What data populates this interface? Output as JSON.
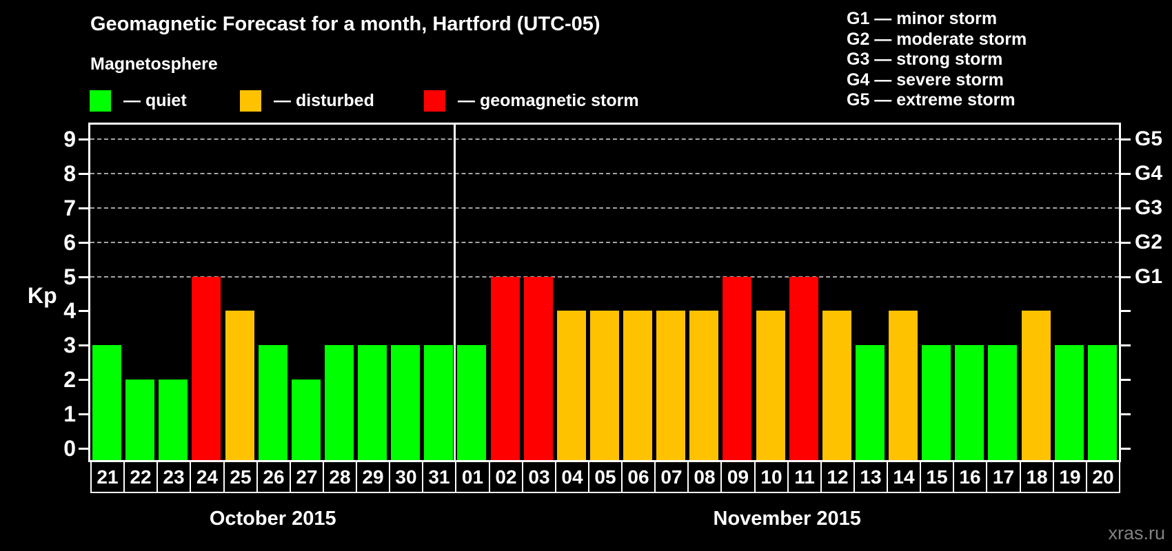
{
  "header": {
    "title": "Geomagnetic Forecast for a month, Hartford (UTC-05)",
    "subtitle": "Magnetosphere"
  },
  "legend": {
    "items": [
      {
        "key": "quiet",
        "label": "— quiet",
        "color": "#00ff00"
      },
      {
        "key": "disturbed",
        "label": "— disturbed",
        "color": "#ffc200"
      },
      {
        "key": "storm",
        "label": "— geomagnetic storm",
        "color": "#ff0000"
      }
    ]
  },
  "g_legend": {
    "items": [
      "G1 — minor storm",
      "G2 — moderate storm",
      "G3 — strong storm",
      "G4 — severe storm",
      "G5 — extreme storm"
    ]
  },
  "axes": {
    "y_label": "Kp",
    "y_ticks": [
      0,
      1,
      2,
      3,
      4,
      5,
      6,
      7,
      8,
      9
    ]
  },
  "watermark": "xras.ru",
  "chart_data": {
    "type": "bar",
    "title": "Geomagnetic Forecast for a month, Hartford (UTC-05)",
    "ylabel": "Kp",
    "ylim": [
      0,
      9
    ],
    "grid_dashed_levels": [
      5,
      6,
      7,
      8,
      9
    ],
    "right_axis_labels": [
      {
        "kp": 5,
        "label": "G1"
      },
      {
        "kp": 6,
        "label": "G2"
      },
      {
        "kp": 7,
        "label": "G3"
      },
      {
        "kp": 8,
        "label": "G4"
      },
      {
        "kp": 9,
        "label": "G5"
      }
    ],
    "status_colors": {
      "quiet": "#00ff00",
      "disturbed": "#ffc200",
      "storm": "#ff0000"
    },
    "months": [
      {
        "label": "October 2015",
        "days": [
          {
            "d": "21",
            "kp": 3,
            "status": "quiet"
          },
          {
            "d": "22",
            "kp": 2,
            "status": "quiet"
          },
          {
            "d": "23",
            "kp": 2,
            "status": "quiet"
          },
          {
            "d": "24",
            "kp": 5,
            "status": "storm"
          },
          {
            "d": "25",
            "kp": 4,
            "status": "disturbed"
          },
          {
            "d": "26",
            "kp": 3,
            "status": "quiet"
          },
          {
            "d": "27",
            "kp": 2,
            "status": "quiet"
          },
          {
            "d": "28",
            "kp": 3,
            "status": "quiet"
          },
          {
            "d": "29",
            "kp": 3,
            "status": "quiet"
          },
          {
            "d": "30",
            "kp": 3,
            "status": "quiet"
          },
          {
            "d": "31",
            "kp": 3,
            "status": "quiet"
          }
        ]
      },
      {
        "label": "November 2015",
        "days": [
          {
            "d": "01",
            "kp": 3,
            "status": "quiet"
          },
          {
            "d": "02",
            "kp": 5,
            "status": "storm"
          },
          {
            "d": "03",
            "kp": 5,
            "status": "storm"
          },
          {
            "d": "04",
            "kp": 4,
            "status": "disturbed"
          },
          {
            "d": "05",
            "kp": 4,
            "status": "disturbed"
          },
          {
            "d": "06",
            "kp": 4,
            "status": "disturbed"
          },
          {
            "d": "07",
            "kp": 4,
            "status": "disturbed"
          },
          {
            "d": "08",
            "kp": 4,
            "status": "disturbed"
          },
          {
            "d": "09",
            "kp": 5,
            "status": "storm"
          },
          {
            "d": "10",
            "kp": 4,
            "status": "disturbed"
          },
          {
            "d": "11",
            "kp": 5,
            "status": "storm"
          },
          {
            "d": "12",
            "kp": 4,
            "status": "disturbed"
          },
          {
            "d": "13",
            "kp": 3,
            "status": "quiet"
          },
          {
            "d": "14",
            "kp": 4,
            "status": "disturbed"
          },
          {
            "d": "15",
            "kp": 3,
            "status": "quiet"
          },
          {
            "d": "16",
            "kp": 3,
            "status": "quiet"
          },
          {
            "d": "17",
            "kp": 3,
            "status": "quiet"
          },
          {
            "d": "18",
            "kp": 4,
            "status": "disturbed"
          },
          {
            "d": "19",
            "kp": 3,
            "status": "quiet"
          },
          {
            "d": "20",
            "kp": 3,
            "status": "quiet"
          }
        ]
      }
    ]
  }
}
